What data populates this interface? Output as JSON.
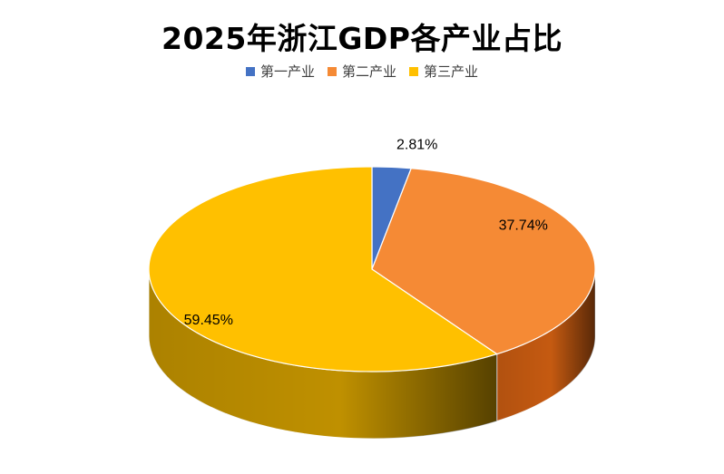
{
  "chart_data": {
    "type": "pie",
    "title": "2025年浙江GDP各产业占比",
    "legend_position": "top",
    "three_d": true,
    "categories": [
      "第一产业",
      "第二产业",
      "第三产业"
    ],
    "values": [
      2.81,
      37.74,
      59.45
    ],
    "labels": [
      "2.81%",
      "37.74%",
      "59.45%"
    ],
    "colors": [
      "#4472C4",
      "#F58A35",
      "#FFC000"
    ],
    "side_colors": [
      "#2F5597",
      "#C55A11",
      "#BF9000"
    ]
  }
}
